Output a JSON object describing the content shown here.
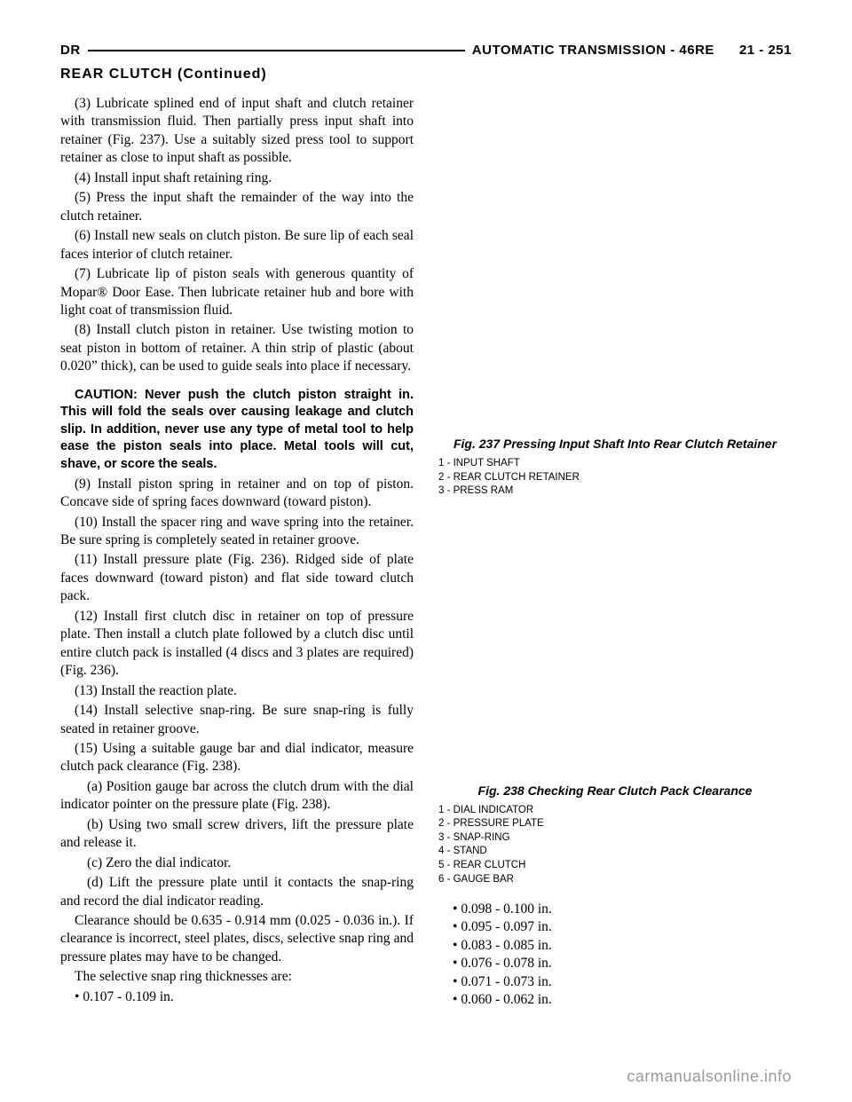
{
  "header": {
    "left": "DR",
    "right_section": "AUTOMATIC TRANSMISSION - 46RE",
    "right_page": "21 - 251"
  },
  "continued": "REAR CLUTCH (Continued)",
  "leftcol": {
    "p1": "(3) Lubricate splined end of input shaft and clutch retainer with transmission fluid. Then partially press input shaft into retainer (Fig. 237). Use a suitably sized press tool to support retainer as close to input shaft as possible.",
    "p2": "(4) Install input shaft retaining ring.",
    "p3": "(5) Press the input shaft the remainder of the way into the clutch retainer.",
    "p4": "(6) Install new seals on clutch piston. Be sure lip of each seal faces interior of clutch retainer.",
    "p5": "(7) Lubricate lip of piston seals with generous quantity of Mopar® Door Ease. Then lubricate retainer hub and bore with light coat of transmission fluid.",
    "p6": "(8) Install clutch piston in retainer. Use twisting motion to seat piston in bottom of retainer. A thin strip of plastic (about 0.020” thick), can be used to guide seals into place if necessary.",
    "caution": "CAUTION: Never push the clutch piston straight in. This will fold the seals over causing leakage and clutch slip. In addition, never use any type of metal tool to help ease the piston seals into place. Metal tools will cut, shave, or score the seals.",
    "p7": "(9) Install piston spring in retainer and on top of piston. Concave side of spring faces downward (toward piston).",
    "p8": "(10) Install the spacer ring and wave spring into the retainer. Be sure spring is completely seated in retainer groove.",
    "p9": "(11) Install pressure plate (Fig. 236). Ridged side of plate faces downward (toward piston) and flat side toward clutch pack.",
    "p10": "(12) Install first clutch disc in retainer on top of pressure plate. Then install a clutch plate followed by a clutch disc until entire clutch pack is installed (4 discs and 3 plates are required) (Fig. 236).",
    "p11": "(13) Install the reaction plate.",
    "p12": "(14) Install selective snap-ring. Be sure snap-ring is fully seated in retainer groove.",
    "p13": "(15) Using a suitable gauge bar and dial indicator, measure clutch pack clearance (Fig. 238).",
    "s1": "(a) Position gauge bar across the clutch drum with the dial indicator pointer on the pressure plate (Fig. 238).",
    "s2": "(b) Using two small screw drivers, lift the pressure plate and release it.",
    "s3": "(c) Zero the dial indicator.",
    "s4": "(d) Lift the pressure plate until it contacts the snap-ring and record the dial indicator reading.",
    "p14": "Clearance should be 0.635 - 0.914 mm (0.025 - 0.036 in.). If clearance is incorrect, steel plates, discs, selective snap ring and pressure plates may have to be changed.",
    "p15": "The selective snap ring thicknesses are:",
    "b1": "0.107 - 0.109 in."
  },
  "fig237": {
    "caption": "Fig. 237 Pressing Input Shaft Into Rear Clutch Retainer",
    "legend": {
      "l1": "1 - INPUT SHAFT",
      "l2": "2 - REAR CLUTCH RETAINER",
      "l3": "3 - PRESS RAM"
    }
  },
  "fig238": {
    "caption": "Fig. 238 Checking Rear Clutch Pack Clearance",
    "legend": {
      "l1": "1 - DIAL INDICATOR",
      "l2": "2 - PRESSURE PLATE",
      "l3": "3 - SNAP-RING",
      "l4": "4 - STAND",
      "l5": "5 - REAR CLUTCH",
      "l6": "6 - GAUGE BAR"
    }
  },
  "rightbullets": {
    "b1": "0.098 - 0.100 in.",
    "b2": "0.095 - 0.097 in.",
    "b3": "0.083 - 0.085 in.",
    "b4": "0.076 - 0.078 in.",
    "b5": "0.071 - 0.073 in.",
    "b6": "0.060 - 0.062 in."
  },
  "footer": "carmanualsonline.info"
}
